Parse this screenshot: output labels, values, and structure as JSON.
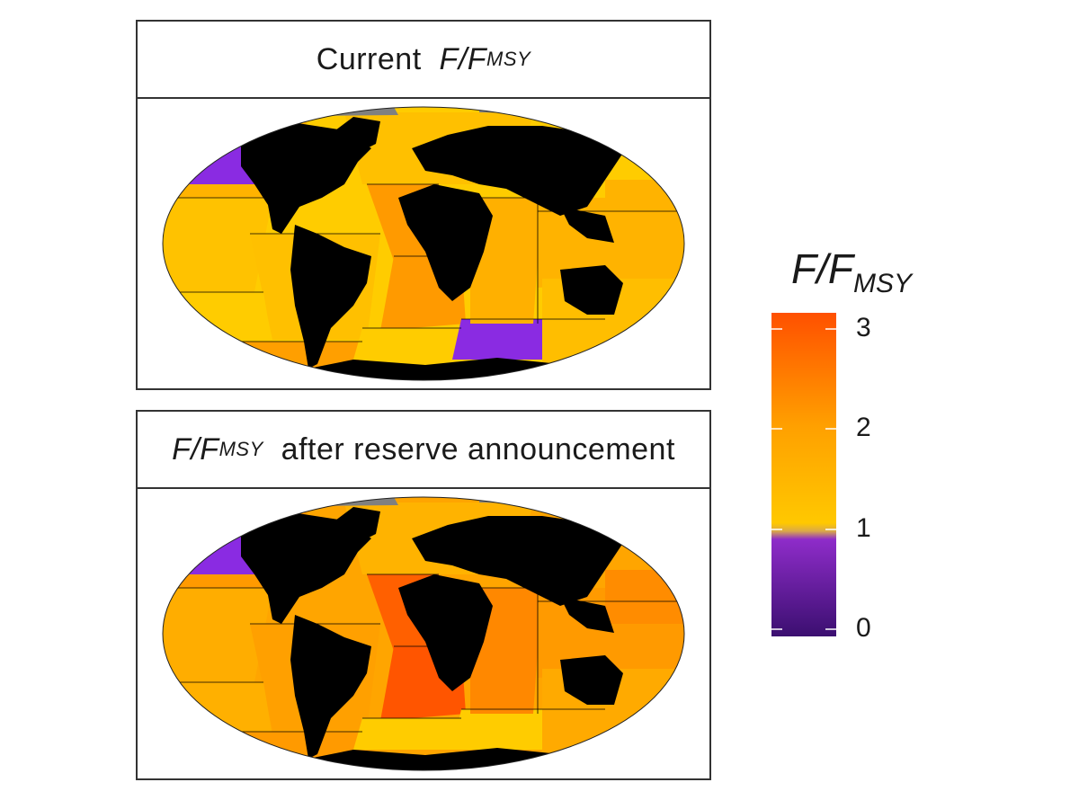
{
  "panels": [
    {
      "title_prefix": "Current",
      "title_var": "F/F",
      "title_sub": "MSY",
      "title_suffix": ""
    },
    {
      "title_prefix": "",
      "title_var": "F/F",
      "title_sub": "MSY",
      "title_suffix": "after reserve announcement"
    }
  ],
  "legend": {
    "title_var": "F/F",
    "title_sub": "MSY",
    "ticks": [
      "3",
      "2",
      "1",
      "0"
    ],
    "range": [
      0,
      3.2
    ],
    "colors": {
      "low": "#3b0f70",
      "mid_low": "#8e2cc9",
      "one": "#f5c400",
      "high": "#ff5a00"
    }
  },
  "colors": {
    "land": "#000000",
    "ice": "#808080",
    "purple": "#8a2be2",
    "yellow": "#ffcc00",
    "orange_light": "#ffb300",
    "orange": "#ff9a00",
    "orange_dark": "#ff6a00",
    "red_orange": "#ff5000"
  }
}
